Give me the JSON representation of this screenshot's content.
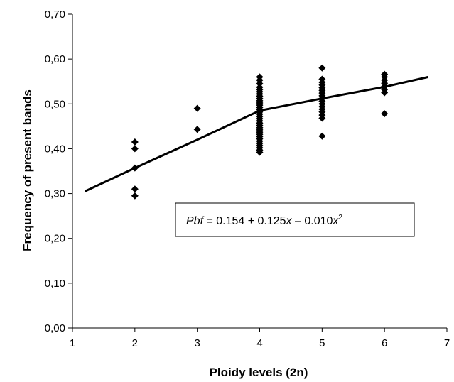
{
  "chart_data": {
    "type": "scatter",
    "title": "",
    "xlabel": "Ploidy  levels (2n)",
    "ylabel": "Frequency of present bands",
    "xlim": [
      1,
      7
    ],
    "ylim": [
      0,
      0.7
    ],
    "x_ticks": [
      1,
      2,
      3,
      4,
      5,
      6,
      7
    ],
    "y_ticks": [
      0.0,
      0.1,
      0.2,
      0.3,
      0.4,
      0.5,
      0.6,
      0.7
    ],
    "x_tick_labels": [
      "1",
      "2",
      "3",
      "4",
      "5",
      "6",
      "7"
    ],
    "y_tick_labels": [
      "0,00",
      "0,10",
      "0,20",
      "0,30",
      "0,40",
      "0,50",
      "0,60",
      "0,70"
    ],
    "grid": false,
    "legend": "none",
    "marker": "diamond",
    "color": "#000000",
    "series": [
      {
        "points": [
          [
            2,
            0.295
          ],
          [
            2,
            0.31
          ],
          [
            2,
            0.357
          ],
          [
            2,
            0.4
          ],
          [
            2,
            0.415
          ],
          [
            3,
            0.443
          ],
          [
            3,
            0.49
          ],
          [
            4,
            0.392
          ],
          [
            4,
            0.397
          ],
          [
            4,
            0.402
          ],
          [
            4,
            0.407
          ],
          [
            4,
            0.412
          ],
          [
            4,
            0.417
          ],
          [
            4,
            0.422
          ],
          [
            4,
            0.427
          ],
          [
            4,
            0.432
          ],
          [
            4,
            0.437
          ],
          [
            4,
            0.442
          ],
          [
            4,
            0.447
          ],
          [
            4,
            0.452
          ],
          [
            4,
            0.457
          ],
          [
            4,
            0.462
          ],
          [
            4,
            0.467
          ],
          [
            4,
            0.472
          ],
          [
            4,
            0.477
          ],
          [
            4,
            0.482
          ],
          [
            4,
            0.487
          ],
          [
            4,
            0.492
          ],
          [
            4,
            0.497
          ],
          [
            4,
            0.502
          ],
          [
            4,
            0.507
          ],
          [
            4,
            0.512
          ],
          [
            4,
            0.517
          ],
          [
            4,
            0.522
          ],
          [
            4,
            0.527
          ],
          [
            4,
            0.532
          ],
          [
            4,
            0.537
          ],
          [
            4,
            0.545
          ],
          [
            4,
            0.553
          ],
          [
            4,
            0.56
          ],
          [
            5,
            0.428
          ],
          [
            5,
            0.468
          ],
          [
            5,
            0.475
          ],
          [
            5,
            0.482
          ],
          [
            5,
            0.488
          ],
          [
            5,
            0.494
          ],
          [
            5,
            0.5
          ],
          [
            5,
            0.506
          ],
          [
            5,
            0.512
          ],
          [
            5,
            0.518
          ],
          [
            5,
            0.524
          ],
          [
            5,
            0.53
          ],
          [
            5,
            0.536
          ],
          [
            5,
            0.542
          ],
          [
            5,
            0.548
          ],
          [
            5,
            0.555
          ],
          [
            5,
            0.58
          ],
          [
            6,
            0.478
          ],
          [
            6,
            0.525
          ],
          [
            6,
            0.532
          ],
          [
            6,
            0.539
          ],
          [
            6,
            0.546
          ],
          [
            6,
            0.553
          ],
          [
            6,
            0.56
          ],
          [
            6,
            0.566
          ]
        ]
      }
    ],
    "fit_line": {
      "points": [
        [
          1.2,
          0.305
        ],
        [
          2,
          0.357
        ],
        [
          3,
          0.42
        ],
        [
          4,
          0.485
        ],
        [
          5,
          0.512
        ],
        [
          6,
          0.538
        ],
        [
          6.7,
          0.56
        ]
      ]
    },
    "annotation": {
      "italic_lhs": "Pbf",
      "eq_part1": " = 0.154 + 0.125",
      "eq_x1": "x",
      "eq_part2": " – 0.010",
      "eq_x2": "x",
      "eq_exp": "2"
    }
  }
}
